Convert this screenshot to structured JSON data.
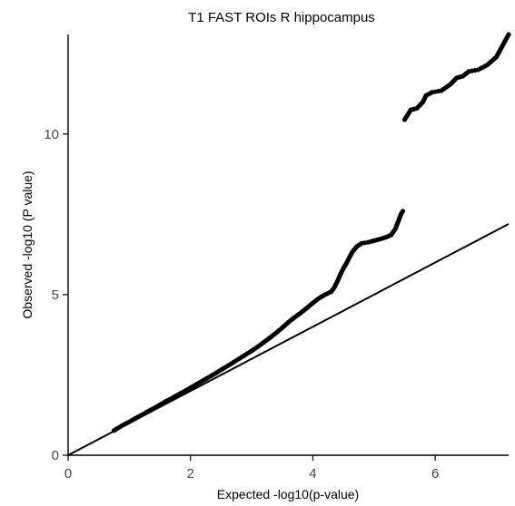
{
  "chart_data": {
    "type": "scatter",
    "title": "T1 FAST ROIs R hippocampus",
    "xlabel": "Expected -log10(p-value)",
    "ylabel": "Observed -log10 (P value)",
    "xlim": [
      0,
      7.2
    ],
    "ylim": [
      0,
      13.1
    ],
    "x_ticks": [
      {
        "value": 0,
        "label": "0"
      },
      {
        "value": 2,
        "label": "2"
      },
      {
        "value": 4,
        "label": "4"
      },
      {
        "value": 6,
        "label": "6"
      }
    ],
    "y_ticks": [
      {
        "value": 0,
        "label": "0"
      },
      {
        "value": 5,
        "label": "5"
      },
      {
        "value": 10,
        "label": "10"
      }
    ],
    "grid": false,
    "legend": "none",
    "reference_line": {
      "x": [
        0,
        7.2
      ],
      "y": [
        0,
        7.2
      ]
    },
    "series": [
      {
        "values": [
          [
            0.75,
            0.77
          ],
          [
            0.8,
            0.83
          ],
          [
            0.9,
            0.94
          ],
          [
            1.0,
            1.04
          ],
          [
            1.1,
            1.15
          ],
          [
            1.2,
            1.25
          ],
          [
            1.3,
            1.36
          ],
          [
            1.4,
            1.46
          ],
          [
            1.5,
            1.57
          ],
          [
            1.6,
            1.68
          ],
          [
            1.7,
            1.78
          ],
          [
            1.8,
            1.89
          ],
          [
            1.9,
            1.99
          ],
          [
            2.0,
            2.1
          ],
          [
            2.1,
            2.21
          ],
          [
            2.2,
            2.32
          ],
          [
            2.3,
            2.43
          ],
          [
            2.4,
            2.54
          ],
          [
            2.5,
            2.66
          ],
          [
            2.6,
            2.77
          ],
          [
            2.7,
            2.89
          ],
          [
            2.8,
            3.01
          ],
          [
            2.9,
            3.13
          ],
          [
            3.0,
            3.25
          ],
          [
            3.1,
            3.38
          ],
          [
            3.2,
            3.52
          ],
          [
            3.3,
            3.66
          ],
          [
            3.4,
            3.81
          ],
          [
            3.5,
            3.97
          ],
          [
            3.6,
            4.14
          ],
          [
            3.7,
            4.29
          ],
          [
            3.8,
            4.43
          ],
          [
            3.9,
            4.58
          ],
          [
            4.0,
            4.74
          ],
          [
            4.1,
            4.89
          ],
          [
            4.2,
            5.0
          ],
          [
            4.3,
            5.09
          ],
          [
            4.35,
            5.22
          ],
          [
            4.4,
            5.41
          ],
          [
            4.45,
            5.63
          ],
          [
            4.5,
            5.82
          ],
          [
            4.55,
            5.98
          ],
          [
            4.6,
            6.17
          ],
          [
            4.65,
            6.34
          ],
          [
            4.72,
            6.5
          ],
          [
            4.8,
            6.6
          ],
          [
            4.9,
            6.63
          ],
          [
            5.0,
            6.68
          ],
          [
            5.1,
            6.73
          ],
          [
            5.2,
            6.79
          ],
          [
            5.28,
            6.86
          ],
          [
            5.35,
            7.05
          ],
          [
            5.4,
            7.3
          ],
          [
            5.44,
            7.5
          ],
          [
            5.47,
            7.6
          ],
          [
            5.5,
            10.45
          ],
          [
            5.55,
            10.6
          ],
          [
            5.6,
            10.75
          ],
          [
            5.7,
            10.8
          ],
          [
            5.8,
            11.0
          ],
          [
            5.85,
            11.2
          ],
          [
            5.95,
            11.3
          ],
          [
            6.1,
            11.35
          ],
          [
            6.25,
            11.55
          ],
          [
            6.35,
            11.75
          ],
          [
            6.45,
            11.8
          ],
          [
            6.55,
            11.95
          ],
          [
            6.7,
            12.0
          ],
          [
            6.85,
            12.15
          ],
          [
            7.0,
            12.4
          ],
          [
            7.2,
            13.1
          ]
        ]
      }
    ]
  }
}
